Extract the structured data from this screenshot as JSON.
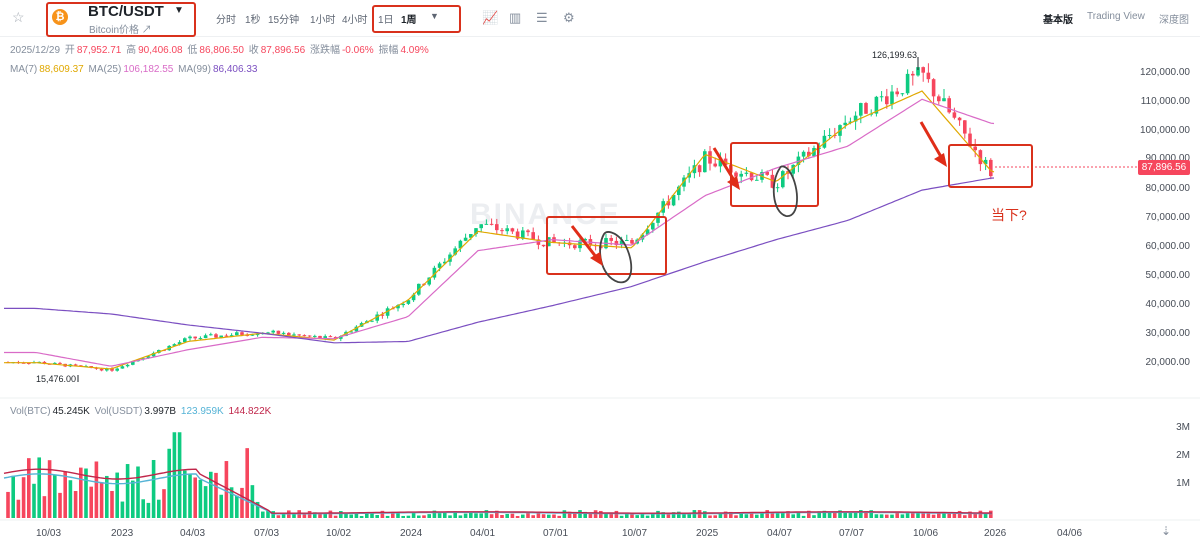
{
  "header": {
    "pair": "BTC/USDT",
    "subtitle": "Bitcoin价格 ↗",
    "timeframes": [
      "分时",
      "1秒",
      "15分钟",
      "1小时",
      "4小时"
    ],
    "interval_options": [
      "1日",
      "1周"
    ],
    "selected_interval": "1周",
    "views": [
      "基本版",
      "Trading View",
      "深度图"
    ],
    "selected_view": "基本版"
  },
  "ohlc": {
    "date": "2025/12/29",
    "open_label": "开",
    "open": "87,952.71",
    "high_label": "高",
    "high": "90,406.08",
    "low_label": "低",
    "low": "86,806.50",
    "close_label": "收",
    "close": "87,896.56",
    "change_label": "涨跌幅",
    "change": "-0.06%",
    "amp_label": "振幅",
    "amp": "4.09%"
  },
  "ma": {
    "ma7_label": "MA(7)",
    "ma7": "88,609.37",
    "ma25_label": "MA(25)",
    "ma25": "106,182.55",
    "ma99_label": "MA(99)",
    "ma99": "86,406.33"
  },
  "volume": {
    "btc_label": "Vol(BTC)",
    "btc": "45.245K",
    "usdt_label": "Vol(USDT)",
    "usdt": "3.997B",
    "ma1": "123.959K",
    "ma2": "144.822K",
    "y_ticks": [
      "3M",
      "2M",
      "1M"
    ]
  },
  "price_axis": {
    "ticks": [
      "120,000.00",
      "110,000.00",
      "100,000.00",
      "90,000.00",
      "80,000.00",
      "70,000.00",
      "60,000.00",
      "50,000.00",
      "40,000.00",
      "30,000.00",
      "20,000.00"
    ],
    "current_price": "87,896.56"
  },
  "time_axis": [
    "10/03",
    "2023",
    "04/03",
    "07/03",
    "10/02",
    "2024",
    "04/01",
    "07/01",
    "10/07",
    "2025",
    "04/07",
    "07/07",
    "10/06",
    "2026",
    "04/06"
  ],
  "chart_annotations": {
    "high_marker": "126,199.63",
    "low_marker": "15,476.00",
    "now_note": "当下?",
    "watermark": "BINANCE"
  },
  "colors": {
    "up": "#0ecb81",
    "down": "#f6465d",
    "ma7": "#e0a800",
    "ma25": "#d96bc7",
    "ma99": "#7b4fc1",
    "annotation": "#d9311c"
  },
  "chart_data": {
    "type": "candlestick",
    "interval": "1周",
    "x": [
      "10/03",
      "2023",
      "04/03",
      "07/03",
      "10/02",
      "2024",
      "04/01",
      "07/01",
      "10/07",
      "2025",
      "04/07",
      "07/07",
      "10/06",
      "2026"
    ],
    "close": [
      19500,
      16600,
      28000,
      30500,
      27900,
      42500,
      69700,
      62700,
      62800,
      93500,
      84500,
      108000,
      124000,
      87896.56
    ],
    "ylim": [
      13000,
      130000
    ],
    "series": [
      {
        "name": "MA(7)",
        "values": [
          19300,
          17000,
          27000,
          30000,
          27500,
          42000,
          67000,
          63000,
          61000,
          95000,
          85000,
          106000,
          118000,
          88609.37
        ]
      },
      {
        "name": "MA(25)",
        "values": [
          23000,
          18000,
          24000,
          28500,
          28000,
          36000,
          60000,
          64000,
          62000,
          80000,
          90000,
          98000,
          115000,
          106182.55
        ]
      },
      {
        "name": "MA(99)",
        "values": [
          39000,
          37000,
          33000,
          30000,
          26500,
          27000,
          34000,
          40000,
          47000,
          56000,
          64000,
          71000,
          82000,
          86406.33
        ]
      }
    ],
    "volume_ylim": [
      0,
      4000000
    ]
  }
}
